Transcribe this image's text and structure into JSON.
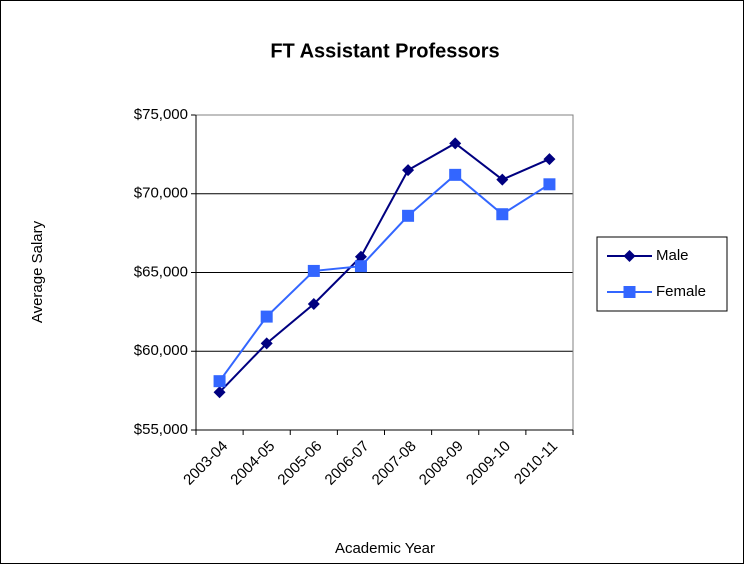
{
  "chart_data": {
    "type": "line",
    "title": "FT Assistant Professors",
    "x_label": "Academic Year",
    "y_label": "Average Salary",
    "categories": [
      "2003-04",
      "2004-05",
      "2005-06",
      "2006-07",
      "2007-08",
      "2008-09",
      "2009-10",
      "2010-11"
    ],
    "series": [
      {
        "name": "Male",
        "color": "#000080",
        "marker": "diamond",
        "values": [
          57400,
          60500,
          63000,
          66000,
          71500,
          73200,
          70900,
          72200
        ]
      },
      {
        "name": "Female",
        "color": "#3366ff",
        "marker": "square",
        "values": [
          58100,
          62200,
          65100,
          65400,
          68600,
          71200,
          68700,
          70600
        ]
      }
    ],
    "ylim": [
      55000,
      75000
    ],
    "yticks": [
      {
        "value": 55000,
        "label": "$55,000"
      },
      {
        "value": 60000,
        "label": "$60,000"
      },
      {
        "value": 65000,
        "label": "$65,000"
      },
      {
        "value": 70000,
        "label": "$70,000"
      },
      {
        "value": 75000,
        "label": "$75,000"
      }
    ],
    "grid": true,
    "legend": "right"
  }
}
